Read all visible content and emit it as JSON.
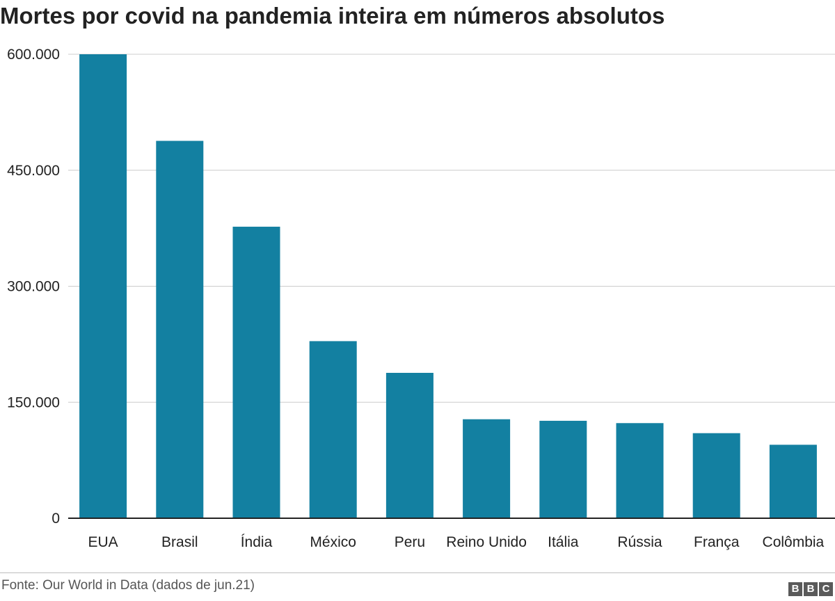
{
  "chart_data": {
    "type": "bar",
    "title": "Mortes por covid na pandemia inteira em números absolutos",
    "categories": [
      "EUA",
      "Brasil",
      "Índia",
      "México",
      "Peru",
      "Reino Unido",
      "Itália",
      "Rússia",
      "França",
      "Colômbia"
    ],
    "values": [
      600000,
      488000,
      377000,
      229000,
      188000,
      128000,
      126000,
      123000,
      110000,
      95000
    ],
    "ylim": [
      0,
      600000
    ],
    "yticks": [
      0,
      150000,
      300000,
      450000,
      600000
    ],
    "ytick_labels": [
      "0",
      "150.000",
      "300.000",
      "450.000",
      "600.000"
    ],
    "xlabel": "",
    "ylabel": "",
    "grid": true,
    "bar_color": "#1380a1"
  },
  "footer": {
    "source": "Fonte: Our World in Data (dados de jun.21)",
    "logo_letters": [
      "B",
      "B",
      "C"
    ]
  }
}
